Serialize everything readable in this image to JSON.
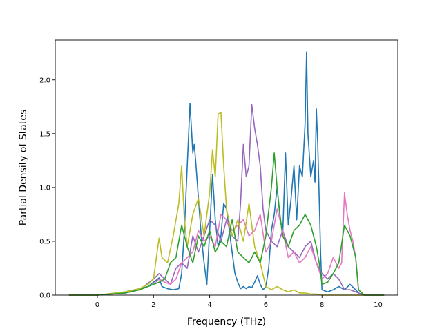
{
  "chart_data": {
    "type": "line",
    "title": "",
    "xlabel": "Frequency (THz)",
    "ylabel": "Partial Density of States",
    "xlim": [
      -1.5,
      10.7
    ],
    "ylim": [
      0,
      2.37
    ],
    "xticks": [
      0,
      2,
      4,
      6,
      8,
      10
    ],
    "xtick_labels": [
      "0",
      "2",
      "4",
      "6",
      "8",
      "10"
    ],
    "yticks": [
      0.0,
      0.5,
      1.0,
      1.5,
      2.0
    ],
    "ytick_labels": [
      "0.0",
      "0.5",
      "1.0",
      "1.5",
      "2.0"
    ],
    "grid": false,
    "legend": "none",
    "series": [
      {
        "color": "#1f77b4",
        "x": [
          -1.0,
          0.0,
          1.0,
          1.5,
          1.8,
          2.0,
          2.1,
          2.2,
          2.3,
          2.5,
          2.7,
          2.9,
          3.0,
          3.1,
          3.2,
          3.3,
          3.35,
          3.4,
          3.45,
          3.5,
          3.6,
          3.7,
          3.8,
          3.9,
          4.0,
          4.1,
          4.2,
          4.3,
          4.4,
          4.5,
          4.6,
          4.7,
          4.8,
          4.9,
          5.0,
          5.1,
          5.2,
          5.3,
          5.4,
          5.5,
          5.6,
          5.7,
          5.8,
          5.9,
          6.0,
          6.1,
          6.2,
          6.3,
          6.4,
          6.5,
          6.6,
          6.7,
          6.8,
          6.9,
          7.0,
          7.1,
          7.2,
          7.3,
          7.4,
          7.45,
          7.5,
          7.6,
          7.7,
          7.75,
          7.8,
          7.85,
          7.9,
          7.95,
          8.0,
          8.2,
          8.4,
          8.6,
          8.8,
          9.0,
          9.2,
          9.3,
          9.5,
          10.0,
          10.2
        ],
        "y": [
          0.0,
          0.0,
          0.03,
          0.06,
          0.08,
          0.12,
          0.14,
          0.16,
          0.08,
          0.06,
          0.05,
          0.06,
          0.2,
          0.6,
          1.2,
          1.78,
          1.55,
          1.32,
          1.4,
          1.25,
          0.9,
          0.55,
          0.3,
          0.1,
          0.6,
          1.12,
          0.7,
          0.45,
          0.55,
          0.85,
          0.8,
          0.6,
          0.4,
          0.2,
          0.12,
          0.06,
          0.08,
          0.06,
          0.08,
          0.07,
          0.12,
          0.18,
          0.1,
          0.05,
          0.08,
          0.25,
          0.6,
          0.75,
          1.0,
          0.75,
          0.55,
          1.32,
          0.65,
          0.9,
          1.2,
          0.7,
          1.2,
          1.1,
          1.6,
          2.26,
          1.5,
          1.1,
          1.25,
          1.05,
          1.73,
          1.4,
          0.9,
          0.4,
          0.05,
          0.03,
          0.05,
          0.08,
          0.05,
          0.1,
          0.05,
          0.02,
          0.0,
          0.0,
          0.0
        ]
      },
      {
        "color": "#9467bd",
        "x": [
          -1.0,
          0.0,
          1.0,
          1.5,
          2.0,
          2.2,
          2.4,
          2.6,
          2.8,
          3.0,
          3.2,
          3.4,
          3.6,
          3.8,
          4.0,
          4.2,
          4.4,
          4.6,
          4.8,
          5.0,
          5.1,
          5.2,
          5.3,
          5.4,
          5.5,
          5.6,
          5.7,
          5.8,
          5.9,
          6.0,
          6.2,
          6.4,
          6.6,
          6.8,
          7.0,
          7.2,
          7.4,
          7.6,
          7.8,
          8.0,
          8.2,
          8.4,
          8.6,
          8.8,
          9.0,
          9.2,
          9.3,
          9.5,
          10.0,
          10.2
        ],
        "y": [
          0.0,
          0.0,
          0.02,
          0.05,
          0.15,
          0.2,
          0.15,
          0.1,
          0.25,
          0.3,
          0.25,
          0.55,
          0.4,
          0.55,
          0.7,
          0.65,
          0.5,
          0.7,
          0.55,
          0.5,
          0.85,
          1.4,
          1.1,
          1.2,
          1.77,
          1.55,
          1.4,
          1.2,
          0.8,
          0.6,
          0.5,
          0.45,
          0.6,
          0.45,
          0.4,
          0.35,
          0.45,
          0.5,
          0.3,
          0.2,
          0.15,
          0.2,
          0.15,
          0.05,
          0.05,
          0.03,
          0.02,
          0.0,
          0.0,
          0.0
        ]
      },
      {
        "color": "#e377c2",
        "x": [
          -1.0,
          0.0,
          1.0,
          1.5,
          2.0,
          2.2,
          2.4,
          2.6,
          2.8,
          3.0,
          3.2,
          3.4,
          3.6,
          3.8,
          4.0,
          4.2,
          4.4,
          4.6,
          4.8,
          5.0,
          5.2,
          5.4,
          5.6,
          5.8,
          6.0,
          6.2,
          6.4,
          6.6,
          6.8,
          7.0,
          7.2,
          7.4,
          7.6,
          7.8,
          8.0,
          8.2,
          8.4,
          8.6,
          8.7,
          8.8,
          8.9,
          9.0,
          9.1,
          9.2,
          9.3,
          9.5,
          10.0,
          10.2
        ],
        "y": [
          0.0,
          0.0,
          0.02,
          0.05,
          0.1,
          0.15,
          0.12,
          0.1,
          0.15,
          0.3,
          0.35,
          0.4,
          0.6,
          0.5,
          0.55,
          0.45,
          0.75,
          0.7,
          0.6,
          0.65,
          0.7,
          0.55,
          0.6,
          0.75,
          0.4,
          0.5,
          0.8,
          0.6,
          0.35,
          0.4,
          0.3,
          0.35,
          0.45,
          0.3,
          0.15,
          0.2,
          0.35,
          0.25,
          0.3,
          0.95,
          0.75,
          0.6,
          0.5,
          0.35,
          0.05,
          0.0,
          0.0,
          0.0
        ]
      },
      {
        "color": "#bcbd22",
        "x": [
          -1.0,
          0.0,
          1.0,
          1.5,
          1.8,
          2.0,
          2.1,
          2.2,
          2.3,
          2.5,
          2.7,
          2.9,
          3.0,
          3.1,
          3.2,
          3.4,
          3.6,
          3.8,
          4.0,
          4.1,
          4.2,
          4.3,
          4.4,
          4.5,
          4.6,
          4.8,
          5.0,
          5.2,
          5.4,
          5.6,
          5.8,
          6.0,
          6.2,
          6.4,
          6.6,
          6.8,
          7.0,
          7.2,
          7.4,
          7.6,
          7.8,
          8.0,
          8.2,
          8.4,
          8.6,
          8.8,
          9.0,
          9.2,
          9.5,
          10.0,
          10.2
        ],
        "y": [
          0.0,
          0.0,
          0.03,
          0.06,
          0.1,
          0.15,
          0.35,
          0.53,
          0.35,
          0.3,
          0.55,
          0.85,
          1.2,
          0.7,
          0.45,
          0.75,
          0.9,
          0.55,
          0.95,
          1.35,
          1.1,
          1.68,
          1.7,
          1.2,
          0.8,
          0.55,
          0.7,
          0.5,
          0.85,
          0.45,
          0.3,
          0.08,
          0.05,
          0.08,
          0.05,
          0.03,
          0.05,
          0.02,
          0.02,
          0.01,
          0.01,
          0.0,
          0.0,
          0.0,
          0.0,
          0.0,
          0.0,
          0.0,
          0.0,
          0.0,
          0.0
        ]
      },
      {
        "color": "#2ca02c",
        "x": [
          -1.0,
          0.0,
          1.0,
          1.5,
          2.0,
          2.2,
          2.4,
          2.6,
          2.8,
          3.0,
          3.2,
          3.4,
          3.6,
          3.8,
          4.0,
          4.2,
          4.4,
          4.6,
          4.8,
          5.0,
          5.2,
          5.4,
          5.6,
          5.8,
          6.0,
          6.2,
          6.3,
          6.4,
          6.5,
          6.6,
          6.8,
          7.0,
          7.2,
          7.4,
          7.6,
          7.8,
          7.9,
          8.0,
          8.2,
          8.4,
          8.6,
          8.8,
          9.0,
          9.1,
          9.2,
          9.3,
          9.5,
          10.0,
          10.2
        ],
        "y": [
          0.0,
          0.0,
          0.02,
          0.05,
          0.1,
          0.12,
          0.15,
          0.3,
          0.35,
          0.65,
          0.45,
          0.3,
          0.55,
          0.45,
          0.6,
          0.4,
          0.5,
          0.45,
          0.7,
          0.4,
          0.35,
          0.3,
          0.4,
          0.3,
          0.55,
          1.0,
          1.32,
          1.0,
          0.75,
          0.55,
          0.45,
          0.6,
          0.65,
          0.75,
          0.65,
          0.45,
          0.3,
          0.1,
          0.12,
          0.2,
          0.3,
          0.65,
          0.55,
          0.45,
          0.35,
          0.05,
          0.0,
          0.0,
          0.0
        ]
      }
    ]
  }
}
